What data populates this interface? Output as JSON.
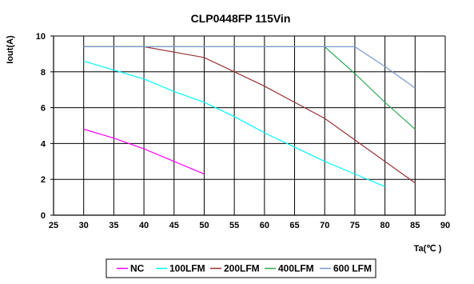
{
  "chart_data": {
    "type": "line",
    "title": "CLP0448FP 115Vin",
    "xlabel": "Ta(℃ )",
    "ylabel": "Iout(A)",
    "xlim": [
      25,
      90
    ],
    "ylim": [
      0,
      10
    ],
    "x_ticks": [
      "25",
      "30",
      "35",
      "40",
      "45",
      "50",
      "55",
      "60",
      "65",
      "70",
      "75",
      "80",
      "85",
      "90"
    ],
    "y_ticks": [
      "0",
      "2",
      "4",
      "6",
      "8",
      "10"
    ],
    "grid": true,
    "legend_position": "bottom",
    "series": [
      {
        "name": "NC",
        "color": "#ff00ff",
        "points": [
          [
            30,
            4.8
          ],
          [
            35,
            4.3
          ],
          [
            40,
            3.7
          ],
          [
            45,
            3.0
          ],
          [
            50,
            2.3
          ]
        ]
      },
      {
        "name": "100LFM",
        "color": "#00ffff",
        "points": [
          [
            30,
            8.6
          ],
          [
            35,
            8.1
          ],
          [
            40,
            7.6
          ],
          [
            45,
            6.9
          ],
          [
            50,
            6.3
          ],
          [
            55,
            5.5
          ],
          [
            60,
            4.6
          ],
          [
            65,
            3.8
          ],
          [
            70,
            3.0
          ],
          [
            75,
            2.3
          ],
          [
            80,
            1.6
          ]
        ]
      },
      {
        "name": "200LFM",
        "color": "#993333",
        "points": [
          [
            30,
            9.4
          ],
          [
            40,
            9.4
          ],
          [
            50,
            8.8
          ],
          [
            55,
            8.0
          ],
          [
            60,
            7.2
          ],
          [
            65,
            6.3
          ],
          [
            70,
            5.4
          ],
          [
            75,
            4.2
          ],
          [
            80,
            3.0
          ],
          [
            85,
            1.8
          ]
        ]
      },
      {
        "name": "400LFM",
        "color": "#33aa55",
        "points": [
          [
            30,
            9.4
          ],
          [
            70,
            9.4
          ],
          [
            75,
            7.9
          ],
          [
            80,
            6.3
          ],
          [
            85,
            4.8
          ]
        ]
      },
      {
        "name": "600 LFM",
        "color": "#7799cc",
        "points": [
          [
            30,
            9.4
          ],
          [
            75,
            9.4
          ],
          [
            80,
            8.3
          ],
          [
            85,
            7.1
          ]
        ]
      }
    ]
  }
}
